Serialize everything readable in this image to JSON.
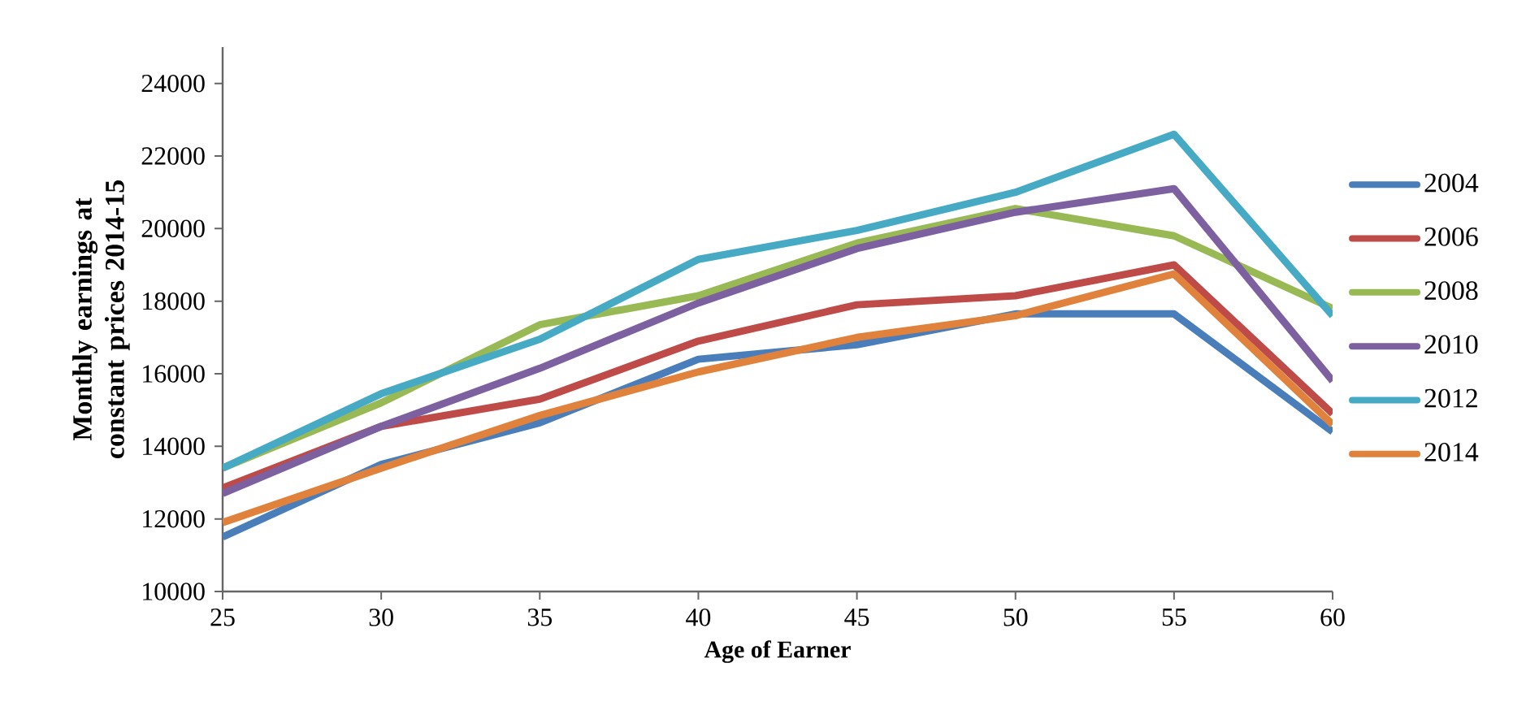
{
  "chart_data": {
    "type": "line",
    "xlabel": "Age of Earner",
    "ylabel": "Monthly earnings at constant prices 2014-15",
    "x": [
      25,
      30,
      35,
      40,
      45,
      50,
      55,
      60
    ],
    "xlim": [
      25,
      60
    ],
    "xticks": [
      25,
      30,
      35,
      40,
      45,
      50,
      55,
      60
    ],
    "ylim": [
      10000,
      25000
    ],
    "yticks": [
      10000,
      12000,
      14000,
      16000,
      18000,
      20000,
      22000,
      24000
    ],
    "legend": "right",
    "grid": false,
    "marker": "none",
    "line_style": "solid",
    "series": [
      {
        "name": "2004",
        "color": "#4a7ebb",
        "values": [
          11500,
          13500,
          14650,
          16400,
          16800,
          17650,
          17650,
          14400
        ]
      },
      {
        "name": "2006",
        "color": "#be4b48",
        "values": [
          12850,
          14550,
          15300,
          16900,
          17900,
          18150,
          19000,
          14900
        ]
      },
      {
        "name": "2008",
        "color": "#98b954",
        "values": [
          13400,
          15200,
          17350,
          18150,
          19600,
          20550,
          19800,
          17800
        ]
      },
      {
        "name": "2010",
        "color": "#7d60a0",
        "values": [
          12700,
          14550,
          16150,
          17950,
          19450,
          20450,
          21100,
          15800
        ]
      },
      {
        "name": "2012",
        "color": "#46aac5",
        "values": [
          13400,
          15450,
          16950,
          19150,
          19950,
          21000,
          22600,
          17600
        ]
      },
      {
        "name": "2014",
        "color": "#e0823c",
        "values": [
          11900,
          13400,
          14850,
          16050,
          17000,
          17600,
          18750,
          14600
        ]
      }
    ]
  }
}
